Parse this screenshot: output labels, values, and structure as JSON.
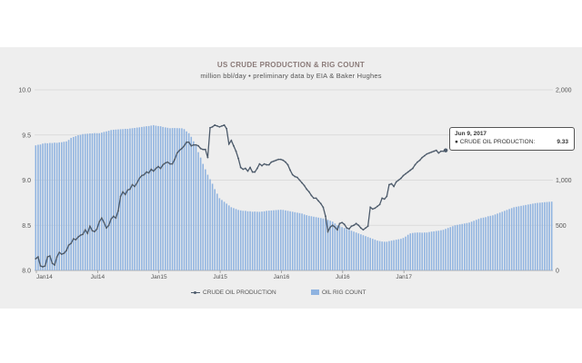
{
  "chart_data": {
    "type": "bar+line",
    "title": "US CRUDE PRODUCTION & RIG COUNT",
    "subtitle": "million bbl/day • preliminary data by EIA & Baker Hughes",
    "x_axis": {
      "ticks": [
        "Jan14",
        "Jul14",
        "Jan15",
        "Jul15",
        "Jan16",
        "Jul16",
        "Jan17"
      ]
    },
    "y_left": {
      "ylim": [
        8.0,
        10.0
      ],
      "ticks": [
        "8.0",
        "8.5",
        "9.0",
        "9.5",
        "10.0"
      ]
    },
    "y_right": {
      "ylim": [
        0,
        2000
      ],
      "ticks": [
        "0",
        "500",
        "1,000",
        "1,500",
        "2,000"
      ]
    },
    "grid": "horizontal",
    "legend": {
      "placement": "bottom"
    },
    "series": [
      {
        "name": "CRUDE OIL PRODUCTION",
        "type": "line",
        "axis": "left",
        "color": "#4d5b6b",
        "x_start": "2014-01-03",
        "x_step_days": 7,
        "values": [
          8.13,
          8.15,
          8.05,
          8.04,
          8.05,
          8.15,
          8.16,
          8.08,
          8.06,
          8.15,
          8.2,
          8.18,
          8.19,
          8.22,
          8.28,
          8.3,
          8.35,
          8.34,
          8.37,
          8.39,
          8.4,
          8.45,
          8.41,
          8.49,
          8.44,
          8.43,
          8.46,
          8.54,
          8.58,
          8.53,
          8.47,
          8.5,
          8.57,
          8.6,
          8.58,
          8.66,
          8.82,
          8.87,
          8.84,
          8.89,
          8.9,
          8.95,
          8.93,
          8.97,
          9.02,
          9.05,
          9.06,
          9.09,
          9.08,
          9.12,
          9.1,
          9.13,
          9.15,
          9.13,
          9.17,
          9.19,
          9.2,
          9.18,
          9.18,
          9.23,
          9.3,
          9.33,
          9.35,
          9.38,
          9.42,
          9.42,
          9.38,
          9.39,
          9.39,
          9.38,
          9.35,
          9.34,
          9.34,
          9.25,
          9.58,
          9.59,
          9.61,
          9.6,
          9.59,
          9.6,
          9.61,
          9.57,
          9.4,
          9.44,
          9.38,
          9.32,
          9.24,
          9.14,
          9.12,
          9.13,
          9.1,
          9.14,
          9.09,
          9.09,
          9.13,
          9.18,
          9.16,
          9.18,
          9.17,
          9.17,
          9.2,
          9.21,
          9.22,
          9.23,
          9.23,
          9.22,
          9.2,
          9.17,
          9.11,
          9.06,
          9.04,
          9.03,
          9.0,
          8.97,
          8.94,
          8.9,
          8.87,
          8.83,
          8.8,
          8.8,
          8.77,
          8.74,
          8.7,
          8.6,
          8.43,
          8.48,
          8.5,
          8.48,
          8.45,
          8.52,
          8.53,
          8.51,
          8.47,
          8.46,
          8.49,
          8.5,
          8.52,
          8.5,
          8.47,
          8.45,
          8.47,
          8.49,
          8.7,
          8.68,
          8.69,
          8.71,
          8.73,
          8.8,
          8.79,
          8.82,
          8.95,
          8.96,
          8.93,
          8.98,
          9.0,
          9.02,
          9.05,
          9.07,
          9.09,
          9.11,
          9.13,
          9.17,
          9.2,
          9.22,
          9.25,
          9.27,
          9.29,
          9.3,
          9.31,
          9.32,
          9.33,
          9.3,
          9.32,
          9.32,
          9.33
        ]
      },
      {
        "name": "OIL RIG COUNT",
        "type": "bar",
        "axis": "right",
        "color": "#8fb3e0",
        "x_start": "2014-01-03",
        "x_step_days": 7,
        "values": [
          1385,
          1392,
          1395,
          1405,
          1410,
          1408,
          1412,
          1411,
          1415,
          1413,
          1418,
          1420,
          1425,
          1429,
          1445,
          1468,
          1478,
          1487,
          1497,
          1502,
          1510,
          1512,
          1514,
          1517,
          1518,
          1521,
          1520,
          1520,
          1526,
          1534,
          1540,
          1547,
          1555,
          1558,
          1560,
          1562,
          1564,
          1565,
          1568,
          1567,
          1572,
          1575,
          1578,
          1582,
          1585,
          1589,
          1593,
          1597,
          1599,
          1604,
          1609,
          1603,
          1599,
          1597,
          1589,
          1584,
          1580,
          1575,
          1577,
          1577,
          1576,
          1575,
          1574,
          1565,
          1540,
          1520,
          1480,
          1430,
          1380,
          1310,
          1250,
          1180,
          1120,
          1060,
          1010,
          960,
          900,
          850,
          800,
          780,
          760,
          740,
          720,
          700,
          690,
          680,
          670,
          665,
          660,
          660,
          655,
          655,
          650,
          652,
          650,
          649,
          652,
          655,
          660,
          662,
          664,
          666,
          668,
          670,
          672,
          670,
          665,
          660,
          655,
          650,
          645,
          640,
          635,
          630,
          620,
          612,
          605,
          600,
          595,
          590,
          585,
          580,
          575,
          570,
          560,
          550,
          540,
          520,
          500,
          490,
          480,
          470,
          460,
          450,
          440,
          430,
          420,
          410,
          400,
          390,
          380,
          370,
          360,
          350,
          340,
          330,
          325,
          320,
          318,
          318,
          325,
          330,
          335,
          340,
          345,
          350,
          360,
          375,
          395,
          410,
          415,
          418,
          420,
          420,
          418,
          420,
          420,
          425,
          430,
          433,
          437,
          440,
          445,
          450,
          460,
          470,
          480,
          490,
          500,
          505,
          510,
          515,
          520,
          525,
          530,
          540,
          550,
          560,
          570,
          580,
          585,
          590,
          600,
          605,
          610,
          620,
          630,
          640,
          650,
          660,
          670,
          680,
          690,
          700,
          705,
          710,
          715,
          720,
          725,
          730,
          735,
          740,
          745,
          748,
          750,
          753,
          756,
          758,
          760,
          762
        ]
      }
    ],
    "tooltip": {
      "date": "Jun 9, 2017",
      "label": "CRUDE OIL PRODUCTION:",
      "value": "9.33"
    }
  }
}
